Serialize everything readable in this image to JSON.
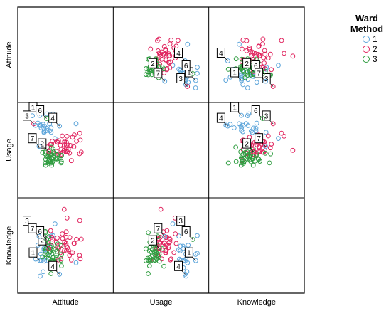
{
  "legend": {
    "title_line1": "Ward",
    "title_line2": "Method",
    "items": [
      {
        "label": "1",
        "color": "#5DA5DA"
      },
      {
        "label": "2",
        "color": "#E0245E"
      },
      {
        "label": "3",
        "color": "#2E9C3F"
      }
    ]
  },
  "chart_data": {
    "type": "scatter",
    "variables": [
      "Attitude",
      "Usage",
      "Knowledge"
    ],
    "groups": [
      {
        "name": "1",
        "color": "#5DA5DA"
      },
      {
        "name": "2",
        "color": "#E0245E"
      },
      {
        "name": "3",
        "color": "#2E9C3F"
      }
    ],
    "labeled_points": [
      {
        "label": "1",
        "group": "1",
        "attitude": 0.16,
        "usage": 0.96,
        "knowledge": 0.3
      },
      {
        "label": "2",
        "group": "2",
        "attitude": 0.28,
        "usage": 0.48,
        "knowledge": 0.46
      },
      {
        "label": "3",
        "group": "2",
        "attitude": 0.08,
        "usage": 0.85,
        "knowledge": 0.72
      },
      {
        "label": "4",
        "group": "1",
        "attitude": 0.42,
        "usage": 0.82,
        "knowledge": 0.12
      },
      {
        "label": "6",
        "group": "3",
        "attitude": 0.25,
        "usage": 0.92,
        "knowledge": 0.58
      },
      {
        "label": "7",
        "group": "1",
        "attitude": 0.15,
        "usage": 0.55,
        "knowledge": 0.62
      }
    ],
    "grid": false,
    "legend_position": "top-right"
  }
}
